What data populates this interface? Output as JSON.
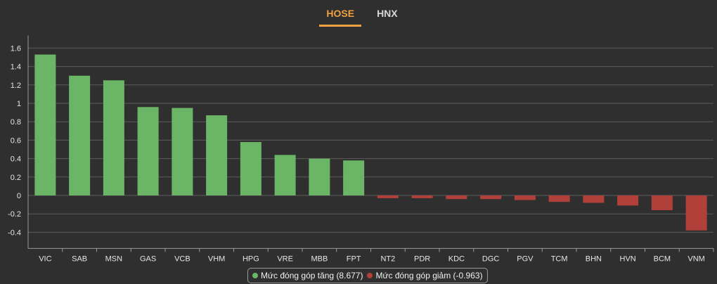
{
  "tabs": [
    {
      "label": "HOSE",
      "active": true
    },
    {
      "label": "HNX",
      "active": false
    }
  ],
  "colors": {
    "positive": "#6ab566",
    "negative": "#b2403a",
    "active_tab": "#f0a043",
    "background": "#2f2f2f",
    "grid": "#5c5c5c",
    "axis": "#9a9a9a",
    "text": "#e6e6e6"
  },
  "chart_data": {
    "type": "bar",
    "categories": [
      "VIC",
      "SAB",
      "MSN",
      "GAS",
      "VCB",
      "VHM",
      "HPG",
      "VRE",
      "MBB",
      "FPT",
      "NT2",
      "PDR",
      "KDC",
      "DGC",
      "PGV",
      "TCM",
      "BHN",
      "HVN",
      "BCM",
      "VNM"
    ],
    "values": [
      1.53,
      1.3,
      1.25,
      0.96,
      0.95,
      0.87,
      0.58,
      0.44,
      0.4,
      0.38,
      -0.03,
      -0.03,
      -0.04,
      -0.04,
      -0.05,
      -0.07,
      -0.08,
      -0.11,
      -0.16,
      -0.38
    ],
    "ylim": [
      -0.4,
      1.6
    ],
    "yticks": [
      "-0.4",
      "-0.2",
      "0",
      "0.2",
      "0.4",
      "0.6",
      "0.8",
      "1",
      "1.2",
      "1.4",
      "1.6"
    ],
    "grid": true,
    "legend_position": "bottom-center",
    "series": [
      {
        "name": "Mức đóng góp tăng (8.677)",
        "color": "#6ab566"
      },
      {
        "name": "Mức đóng góp giảm (-0.963)",
        "color": "#b2403a"
      }
    ]
  }
}
